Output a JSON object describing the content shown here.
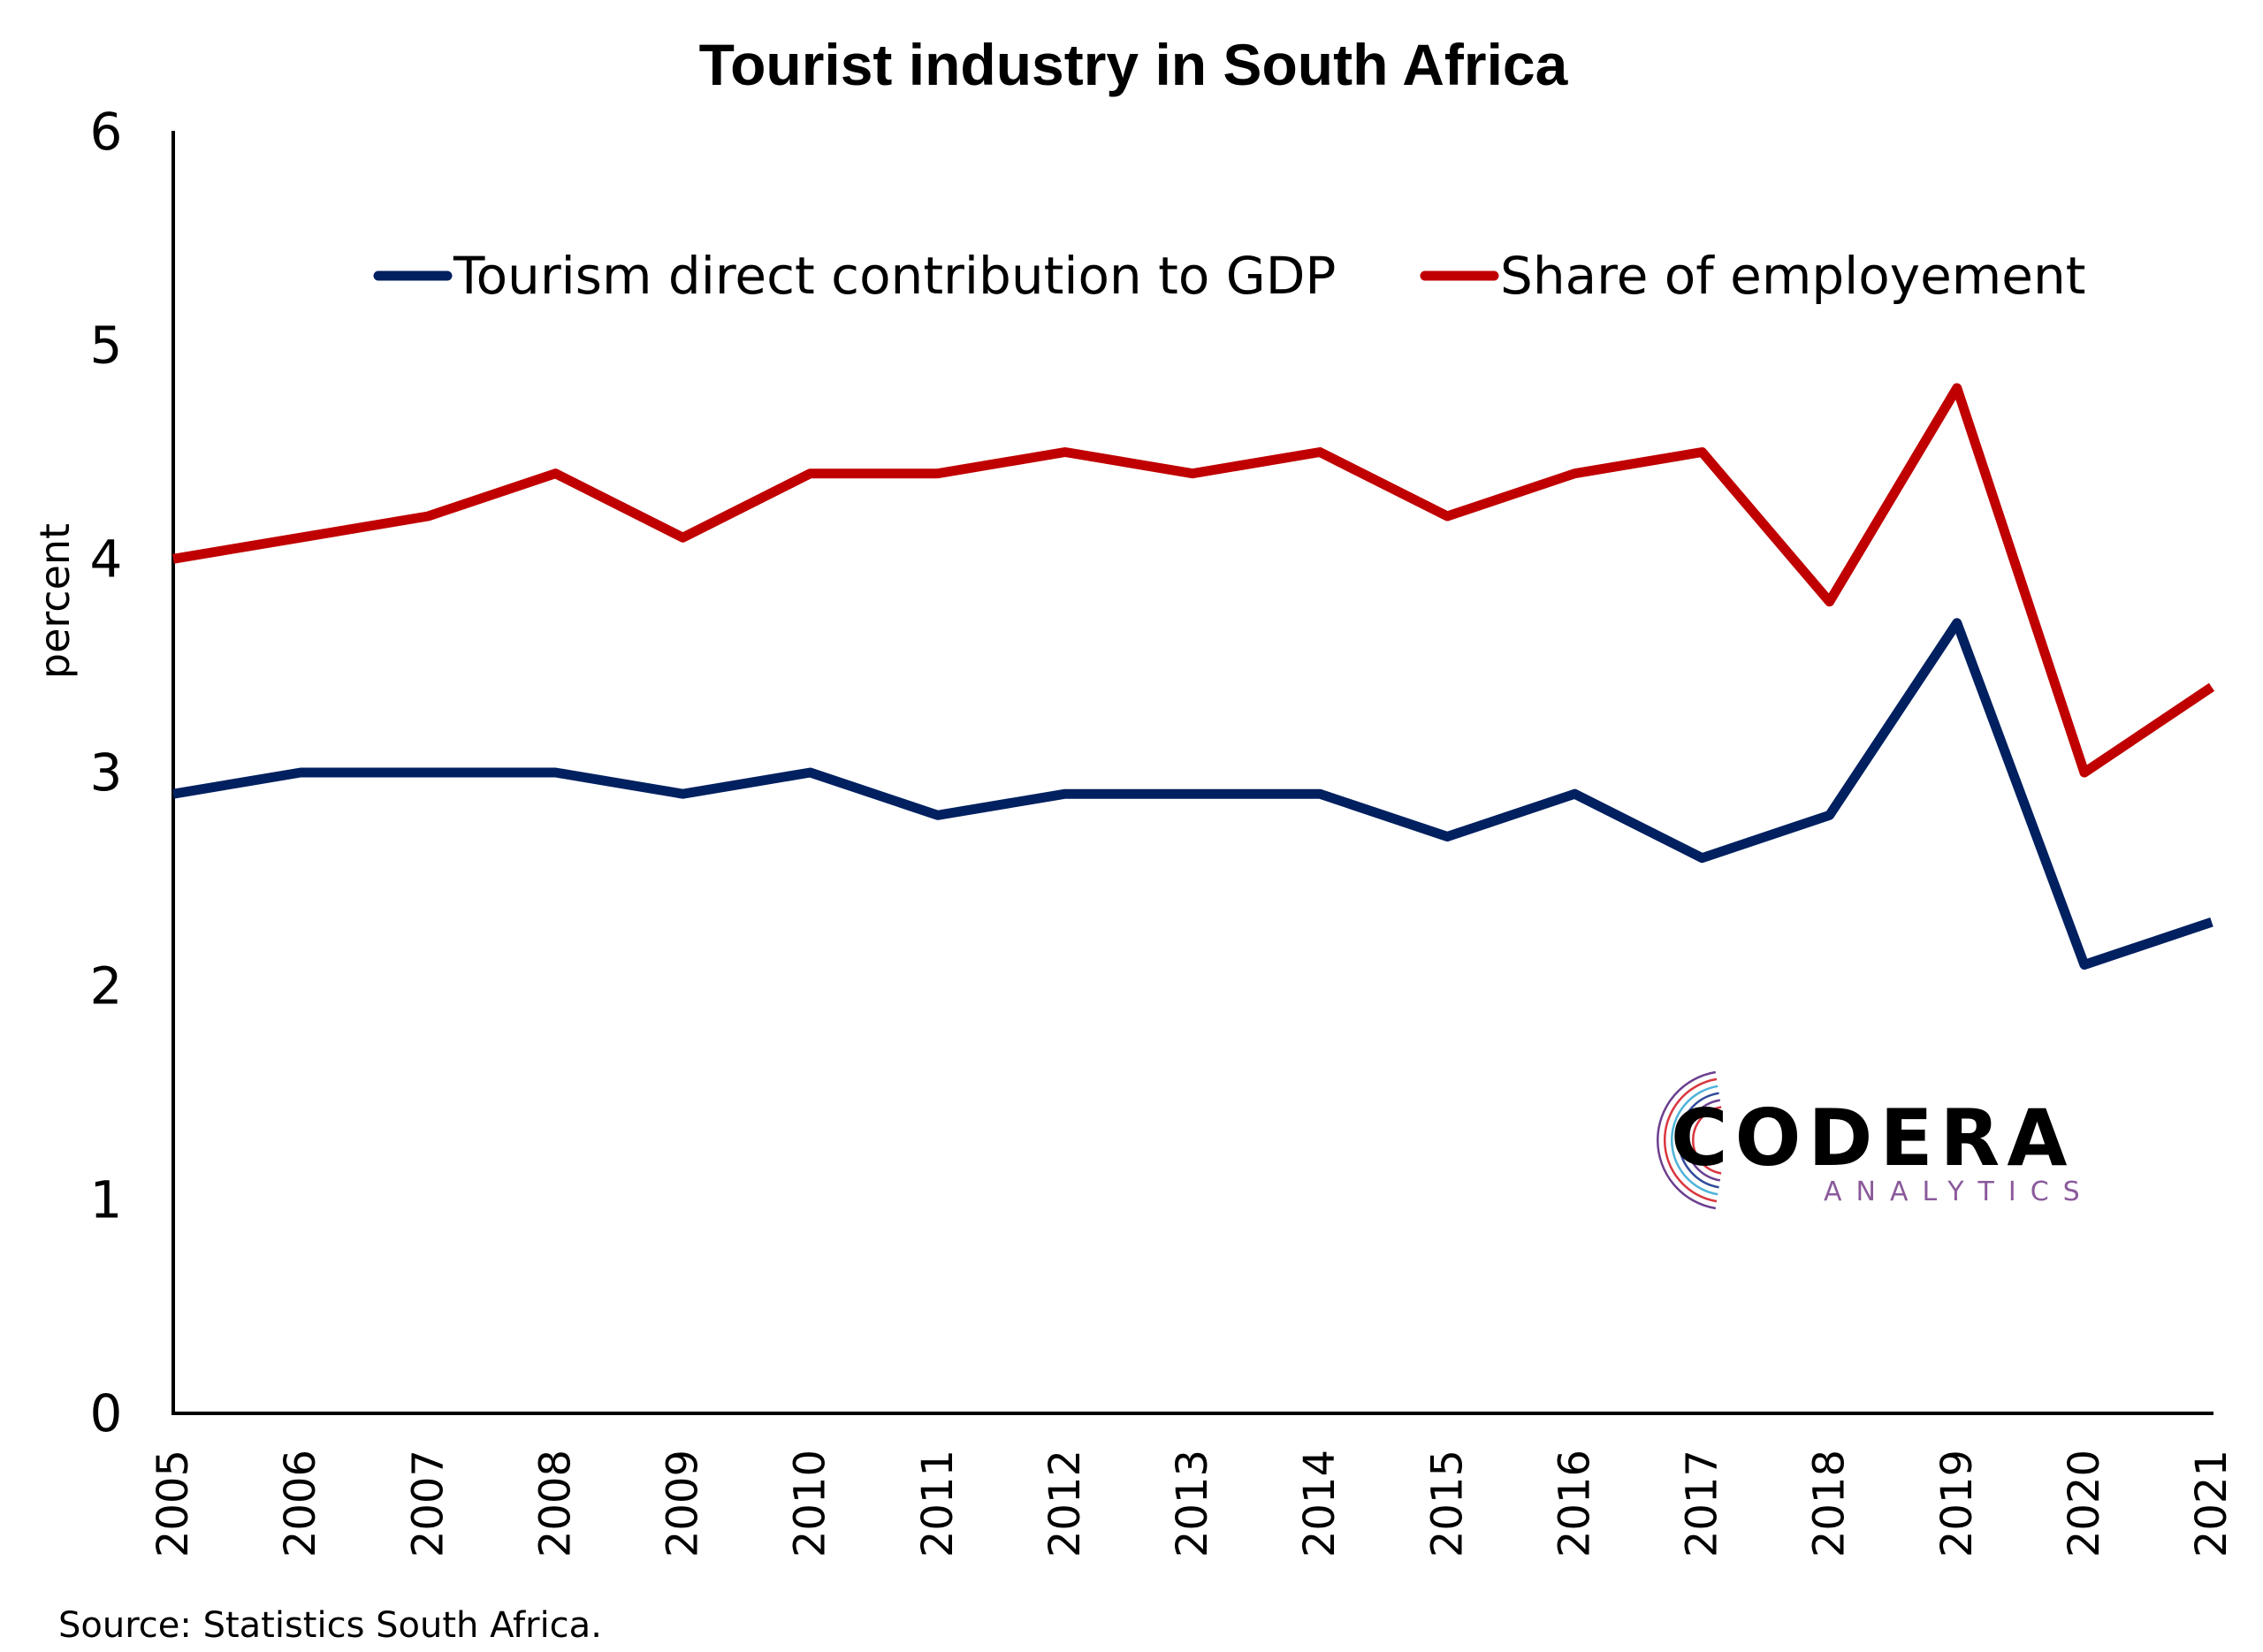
{
  "chart_data": {
    "type": "line",
    "title": "Tourist industry in South Africa",
    "xlabel": "",
    "ylabel": "percent",
    "ylim": [
      0,
      6
    ],
    "yticks": [
      "0",
      "1",
      "2",
      "3",
      "4",
      "5",
      "6"
    ],
    "grid": false,
    "legend_position": "top-center",
    "x": [
      "2005",
      "2006",
      "2007",
      "2008",
      "2009",
      "2010",
      "2011",
      "2012",
      "2013",
      "2014",
      "2015",
      "2016",
      "2017",
      "2018",
      "2019",
      "2020",
      "2021"
    ],
    "series": [
      {
        "name": "Tourism direct contribution to GDP",
        "color": "#002060",
        "values": [
          2.9,
          3.0,
          3.0,
          3.0,
          2.9,
          3.0,
          2.8,
          2.9,
          2.9,
          2.9,
          2.7,
          2.9,
          2.6,
          2.8,
          3.7,
          2.1,
          2.3
        ]
      },
      {
        "name": "Share of employement",
        "color": "#C00000",
        "values": [
          4.0,
          4.1,
          4.2,
          4.4,
          4.1,
          4.4,
          4.4,
          4.5,
          4.4,
          4.5,
          4.2,
          4.4,
          4.5,
          3.8,
          4.8,
          3.0,
          3.4
        ]
      }
    ],
    "source": "Source: Statistics South Africa."
  },
  "logo": {
    "name": "CODERA",
    "tagline": "ANALYTICS",
    "colors": {
      "red": "#D9363E",
      "purple": "#6B3F8F",
      "blue": "#2E4A9A",
      "cyan": "#4FB3D9"
    }
  }
}
